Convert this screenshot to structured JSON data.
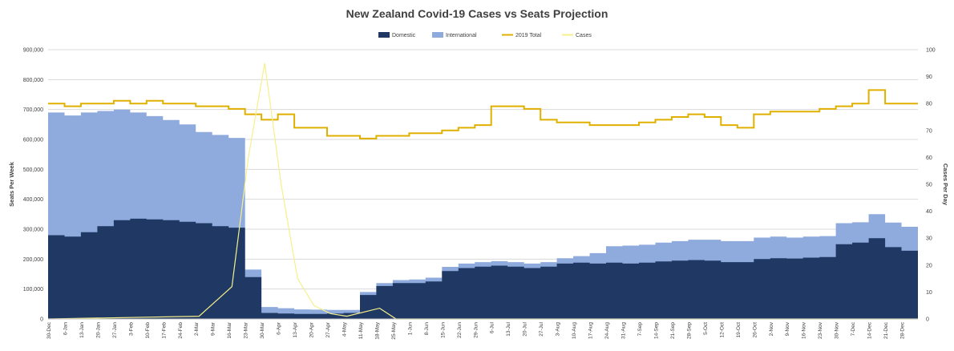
{
  "chart_data": {
    "type": "area",
    "title": "New Zealand Covid-19 Cases vs Seats Projection",
    "ylabel": "Seats Per Week",
    "y2label": "Cases Per Day",
    "ylim": [
      0,
      900000
    ],
    "y2lim": [
      0,
      100
    ],
    "yticks": [
      "0",
      "100,000",
      "200,000",
      "300,000",
      "400,000",
      "500,000",
      "600,000",
      "700,000",
      "800,000",
      "900,000"
    ],
    "y2ticks": [
      "0",
      "10",
      "20",
      "30",
      "40",
      "50",
      "60",
      "70",
      "80",
      "90",
      "100"
    ],
    "grid": "horizontal",
    "legend_position": "top-center",
    "legend": [
      {
        "name": "Domestic",
        "type": "area",
        "color": "#1f3864"
      },
      {
        "name": "International",
        "type": "area",
        "color": "#8faadc"
      },
      {
        "name": "2019 Total",
        "type": "line",
        "color": "#e0b000"
      },
      {
        "name": "Cases",
        "type": "line",
        "color": "#f6f08a"
      }
    ],
    "weeks": [
      "30-Dec",
      "6-Jan",
      "13-Jan",
      "20-Jan",
      "27-Jan",
      "3-Feb",
      "10-Feb",
      "17-Feb",
      "24-Feb",
      "2-Mar",
      "9-Mar",
      "16-Mar",
      "23-Mar",
      "30-Mar",
      "6-Apr",
      "13-Apr",
      "20-Apr",
      "27-Apr",
      "4-May",
      "11-May",
      "18-May",
      "25-May",
      "1-Jun",
      "8-Jun",
      "15-Jun",
      "22-Jun",
      "29-Jun",
      "6-Jul",
      "13-Jul",
      "20-Jul",
      "27-Jul",
      "3-Aug",
      "10-Aug",
      "17-Aug",
      "24-Aug",
      "31-Aug",
      "7-Sep",
      "14-Sep",
      "21-Sep",
      "28-Sep",
      "5-Oct",
      "12-Oct",
      "19-Oct",
      "26-Oct",
      "2-Nov",
      "9-Nov",
      "16-Nov",
      "23-Nov",
      "30-Nov",
      "7-Dec",
      "14-Dec",
      "21-Dec",
      "28-Dec"
    ],
    "domestic_weekly": [
      280000,
      275000,
      290000,
      310000,
      330000,
      335000,
      333000,
      330000,
      325000,
      320000,
      310000,
      305000,
      140000,
      20000,
      18000,
      17000,
      17000,
      18000,
      20000,
      80000,
      110000,
      120000,
      120000,
      125000,
      160000,
      170000,
      175000,
      178000,
      175000,
      170000,
      175000,
      185000,
      188000,
      185000,
      188000,
      185000,
      188000,
      192000,
      195000,
      197000,
      195000,
      190000,
      190000,
      200000,
      203000,
      202000,
      205000,
      207000,
      250000,
      255000,
      270000,
      240000,
      228000
    ],
    "international_weekly": [
      410000,
      405000,
      400000,
      385000,
      370000,
      355000,
      345000,
      335000,
      325000,
      305000,
      305000,
      300000,
      25000,
      20000,
      18000,
      15000,
      14000,
      12000,
      10000,
      10000,
      10000,
      10000,
      12000,
      13000,
      14000,
      15000,
      15000,
      15000,
      15000,
      15000,
      15000,
      18000,
      22000,
      35000,
      55000,
      60000,
      60000,
      63000,
      65000,
      68000,
      70000,
      70000,
      70000,
      72000,
      72000,
      70000,
      70000,
      70000,
      70000,
      68000,
      80000,
      82000,
      80000
    ],
    "total_2019_per_day_scale": [
      80,
      79,
      80,
      80,
      81,
      80,
      81,
      80,
      80,
      79,
      79,
      78,
      76,
      74,
      76,
      71,
      71,
      68,
      68,
      67,
      68,
      68,
      69,
      69,
      70,
      71,
      72,
      79,
      79,
      78,
      74,
      73,
      73,
      72,
      72,
      72,
      73,
      74,
      75,
      76,
      75,
      72,
      71,
      76,
      77,
      77,
      77,
      78,
      79,
      80,
      85,
      80,
      80
    ],
    "cases_daily_peak": [
      {
        "x": "2-Mar",
        "y": 1
      },
      {
        "x": "16-Mar",
        "y": 12
      },
      {
        "x": "23-Mar",
        "y": 60
      },
      {
        "x": "30-Mar",
        "y": 95
      },
      {
        "x": "6-Apr",
        "y": 50
      },
      {
        "x": "13-Apr",
        "y": 15
      },
      {
        "x": "20-Apr",
        "y": 5
      },
      {
        "x": "27-Apr",
        "y": 2
      },
      {
        "x": "4-May",
        "y": 1
      },
      {
        "x": "18-May",
        "y": 4
      },
      {
        "x": "25-May",
        "y": 0
      }
    ]
  }
}
